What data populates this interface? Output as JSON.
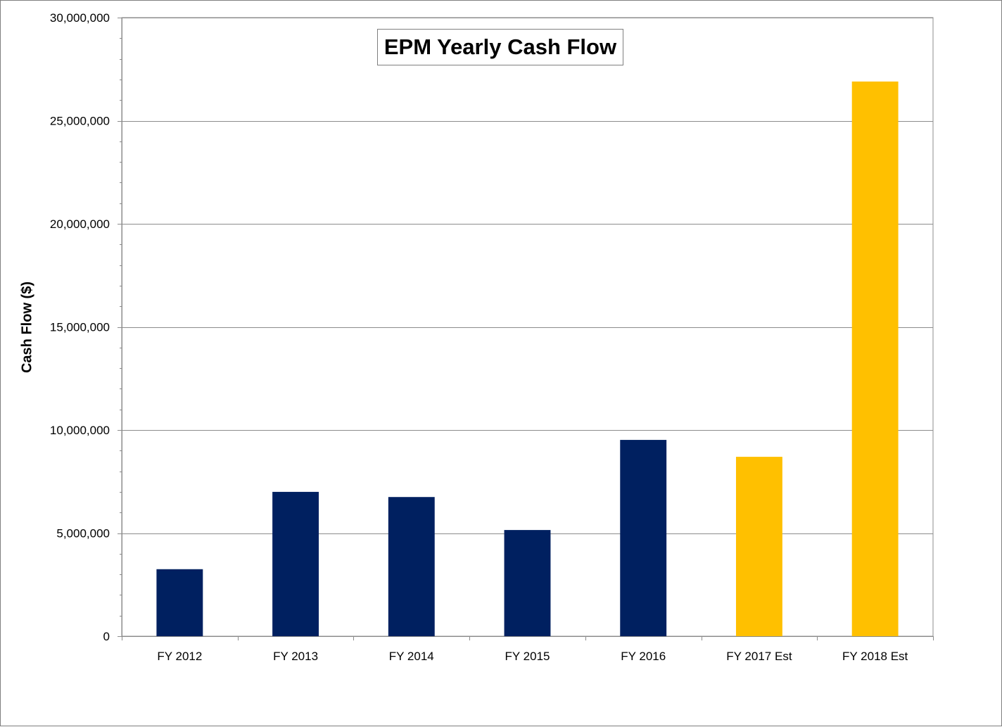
{
  "chart_data": {
    "type": "bar",
    "title": "EPM Yearly Cash Flow",
    "xlabel": "",
    "ylabel": "Cash Flow ($)",
    "categories": [
      "FY 2012",
      "FY 2013",
      "FY 2014",
      "FY 2015",
      "FY 2016",
      "FY 2017 Est",
      "FY 2018 Est"
    ],
    "values": [
      3250000,
      7000000,
      6750000,
      5150000,
      9520000,
      8700000,
      26900000
    ],
    "bar_colors": [
      "#002060",
      "#002060",
      "#002060",
      "#002060",
      "#002060",
      "#FFC000",
      "#FFC000"
    ],
    "ylim": [
      0,
      30000000
    ],
    "y_ticks": [
      0,
      5000000,
      10000000,
      15000000,
      20000000,
      25000000,
      30000000
    ],
    "y_tick_labels": [
      "0",
      "5,000,000",
      "10,000,000",
      "15,000,000",
      "20,000,000",
      "25,000,000",
      "30,000,000"
    ],
    "grid": true,
    "legend": "none"
  }
}
